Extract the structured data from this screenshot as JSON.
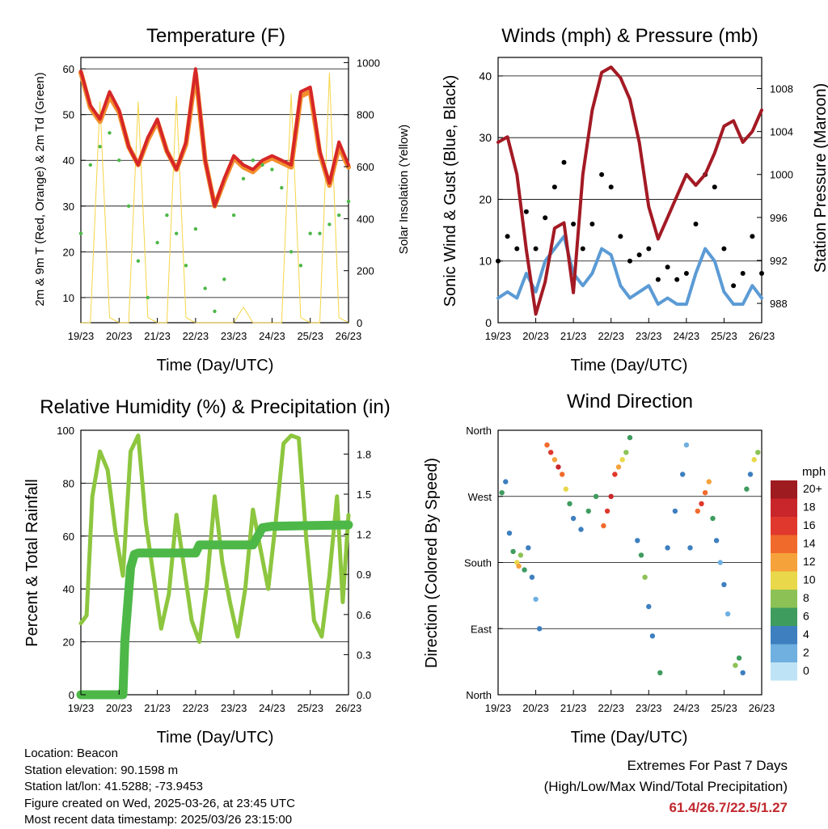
{
  "time_ticks": [
    "19/23",
    "20/23",
    "21/23",
    "22/23",
    "23/23",
    "24/23",
    "25/23",
    "26/23"
  ],
  "info": {
    "location": "Location: Beacon",
    "elevation": "Station elevation: 90.1598 m",
    "latlon": "Station lat/lon: 41.5288; -73.9453",
    "created": "Figure created on Wed, 2025-03-26, at 23:45 UTC",
    "recent": "Most recent data timestamp: 2025/03/26 23:15:00"
  },
  "extremes": {
    "title": "Extremes For Past 7 Days",
    "subtitle": "(High/Low/Max Wind/Total Precipitation)",
    "values": "61.4/26.7/22.5/1.27"
  },
  "colors": {
    "red": "#d62728",
    "orange": "#f28e2b",
    "green": "#4db848",
    "yellow": "#f5d547",
    "blue": "#5b9bd5",
    "maroon": "#a31a24",
    "lightgreen": "#8dc63f",
    "black": "#000000"
  },
  "chart_data": [
    {
      "type": "line",
      "title": "Temperature (F)",
      "xlabel": "Time (Day/UTC)",
      "ylabel": "2m & 9m T (Red, Orange) & 2m Td (Green)",
      "ylabel_right": "Solar Insolation (Yellow)",
      "ylim": [
        4.5,
        62.5
      ],
      "yticks": [
        10,
        20,
        30,
        40,
        50,
        60
      ],
      "ylim_right": [
        0,
        1020
      ],
      "yticks_right": [
        0,
        200,
        400,
        600,
        800,
        1000
      ],
      "grid": true,
      "x": [
        0,
        0.25,
        0.5,
        0.75,
        1,
        1.25,
        1.5,
        1.75,
        2,
        2.25,
        2.5,
        2.75,
        3,
        3.25,
        3.5,
        3.75,
        4,
        4.25,
        4.5,
        4.75,
        5,
        5.25,
        5.5,
        5.75,
        6,
        6.25,
        6.5,
        6.75,
        7
      ],
      "series": [
        {
          "color_key": "red",
          "values": [
            59.5,
            52,
            49,
            55,
            51,
            43,
            39,
            45,
            49,
            42,
            38,
            44,
            60,
            40,
            30,
            36,
            41,
            39,
            38,
            40,
            41,
            40,
            39,
            55,
            56,
            42,
            35,
            44,
            39
          ]
        },
        {
          "color_key": "orange",
          "values": [
            59.2,
            51.5,
            48.5,
            54,
            50.5,
            43,
            39,
            44.5,
            48.5,
            42,
            38,
            43.5,
            59,
            40,
            30,
            35.5,
            40.5,
            38.5,
            37.5,
            39.5,
            40.5,
            39.5,
            38.5,
            54,
            55,
            41.5,
            34.5,
            43,
            38.5
          ]
        },
        {
          "color_key": "green",
          "values": [
            24,
            39,
            43,
            46,
            40,
            30,
            18,
            10,
            22,
            28,
            24,
            17,
            25,
            12,
            7,
            14,
            28,
            36,
            40,
            39,
            38,
            34,
            20,
            17,
            24,
            24,
            26,
            28,
            31
          ]
        },
        {
          "color_key": "yellow",
          "axis": "right",
          "values": [
            0,
            0,
            850,
            20,
            0,
            0,
            850,
            20,
            0,
            0,
            870,
            20,
            0,
            0,
            0,
            0,
            0,
            60,
            0,
            0,
            0,
            0,
            880,
            20,
            0,
            0,
            960,
            20,
            0
          ]
        }
      ]
    },
    {
      "type": "line",
      "title": "Winds (mph) & Pressure (mb)",
      "xlabel": "Time (Day/UTC)",
      "ylabel": "Sonic Wind & Gust (Blue, Black)",
      "ylabel_right": "Station Pressure (Maroon)",
      "ylim": [
        0,
        43
      ],
      "yticks": [
        0,
        10,
        20,
        30,
        40
      ],
      "ylim_right": [
        986.2,
        1010.9
      ],
      "yticks_right": [
        988,
        992,
        996,
        1000,
        1004,
        1008
      ],
      "grid": true,
      "x": [
        0,
        0.25,
        0.5,
        0.75,
        1,
        1.25,
        1.5,
        1.75,
        2,
        2.25,
        2.5,
        2.75,
        3,
        3.25,
        3.5,
        3.75,
        4,
        4.25,
        4.5,
        4.75,
        5,
        5.25,
        5.5,
        5.75,
        6,
        6.25,
        6.5,
        6.75,
        7
      ],
      "series": [
        {
          "color_key": "blue",
          "values": [
            4,
            5,
            4,
            8,
            5,
            10,
            12,
            14,
            8,
            6,
            8,
            12,
            11,
            6,
            4,
            5,
            6,
            3,
            4,
            3,
            3,
            8,
            12,
            10,
            5,
            3,
            3,
            6,
            4
          ]
        },
        {
          "color_key": "black",
          "values": [
            10,
            14,
            12,
            18,
            12,
            17,
            22,
            26,
            16,
            12,
            16,
            24,
            22,
            14,
            10,
            11,
            12,
            7,
            9,
            7,
            8,
            16,
            24,
            22,
            12,
            6,
            8,
            14,
            8
          ]
        },
        {
          "color_key": "maroon",
          "axis": "right",
          "values": [
            1003,
            1003.5,
            1000,
            993,
            987,
            990,
            995,
            995.5,
            989,
            1000,
            1006,
            1009.5,
            1010,
            1009,
            1007,
            1003,
            997,
            994,
            996,
            998,
            1000,
            999,
            1000,
            1002,
            1004.5,
            1005,
            1003,
            1004,
            1006
          ]
        }
      ]
    },
    {
      "type": "line",
      "title": "Relative Humidity (%) & Precipitation (in)",
      "xlabel": "Time (Day/UTC)",
      "ylabel": "Percent & Total Rainfall",
      "ylim": [
        0,
        100
      ],
      "yticks": [
        0,
        20,
        40,
        60,
        80,
        100
      ],
      "ylim_right": [
        0,
        1.978
      ],
      "yticks_right": [
        0.0,
        0.3,
        0.6,
        0.9,
        1.2,
        1.5,
        1.8
      ],
      "yticks_right_labels": [
        "0.0",
        "0.3",
        "0.6",
        "0.9",
        "1.2",
        "1.5",
        "1.8"
      ],
      "grid": true,
      "series": [
        {
          "color_key": "lightgreen",
          "x": [
            0,
            0.15,
            0.3,
            0.5,
            0.7,
            0.9,
            1.1,
            1.3,
            1.5,
            1.7,
            1.9,
            2.1,
            2.3,
            2.5,
            2.7,
            2.9,
            3.1,
            3.3,
            3.5,
            3.7,
            3.9,
            4.1,
            4.3,
            4.5,
            4.7,
            4.9,
            5.1,
            5.3,
            5.5,
            5.7,
            5.9,
            6.1,
            6.3,
            6.5,
            6.7,
            6.85,
            7
          ],
          "values": [
            27,
            30,
            75,
            92,
            85,
            62,
            45,
            92,
            98,
            65,
            45,
            25,
            38,
            68,
            48,
            28,
            20,
            42,
            75,
            50,
            35,
            22,
            40,
            70,
            55,
            40,
            66,
            95,
            98,
            97,
            58,
            28,
            22,
            45,
            75,
            35,
            68
          ]
        },
        {
          "color_key": "green",
          "axis": "right",
          "x": [
            0,
            1.1,
            1.15,
            1.3,
            1.4,
            1.5,
            1.6,
            3,
            3.1,
            4.5,
            4.75,
            5,
            7
          ],
          "values": [
            0,
            0,
            0.4,
            0.95,
            1.05,
            1.06,
            1.06,
            1.06,
            1.12,
            1.12,
            1.25,
            1.26,
            1.27
          ]
        }
      ]
    },
    {
      "type": "scatter",
      "title": "Wind Direction",
      "xlabel": "Time (Day/UTC)",
      "ylabel": "Direction (Colored By Speed)",
      "yticks_labels": [
        "North",
        "East",
        "South",
        "West",
        "North"
      ],
      "ylim": [
        0,
        360
      ],
      "legend_title": "mph",
      "legend_labels": [
        "20+",
        "18",
        "16",
        "14",
        "12",
        "10",
        "8",
        "6",
        "4",
        "2",
        "0"
      ],
      "legend_colors": [
        "#9e1b1f",
        "#c8262b",
        "#e0382c",
        "#f06a2c",
        "#f6a23b",
        "#e8d84a",
        "#8cc255",
        "#3f9c5f",
        "#3d7fbf",
        "#6fb0e0",
        "#bfe3f6"
      ],
      "points": [
        [
          0.1,
          275,
          6
        ],
        [
          0.2,
          290,
          4
        ],
        [
          0.3,
          220,
          3
        ],
        [
          0.4,
          195,
          6
        ],
        [
          0.5,
          180,
          10
        ],
        [
          0.55,
          175,
          12
        ],
        [
          0.6,
          190,
          8
        ],
        [
          0.7,
          170,
          6
        ],
        [
          0.8,
          200,
          4
        ],
        [
          0.9,
          160,
          3
        ],
        [
          1.0,
          130,
          2
        ],
        [
          1.1,
          90,
          3
        ],
        [
          1.3,
          340,
          14
        ],
        [
          1.4,
          330,
          16
        ],
        [
          1.5,
          320,
          12
        ],
        [
          1.6,
          310,
          18
        ],
        [
          1.7,
          300,
          14
        ],
        [
          1.8,
          280,
          10
        ],
        [
          1.9,
          260,
          6
        ],
        [
          2.0,
          240,
          4
        ],
        [
          2.2,
          225,
          3
        ],
        [
          2.4,
          250,
          6
        ],
        [
          2.6,
          270,
          5
        ],
        [
          2.8,
          230,
          14
        ],
        [
          2.9,
          250,
          16
        ],
        [
          3.0,
          270,
          18
        ],
        [
          3.1,
          300,
          16
        ],
        [
          3.2,
          310,
          12
        ],
        [
          3.3,
          320,
          10
        ],
        [
          3.4,
          330,
          8
        ],
        [
          3.5,
          350,
          6
        ],
        [
          3.7,
          210,
          4
        ],
        [
          3.8,
          190,
          6
        ],
        [
          3.9,
          160,
          8
        ],
        [
          4.0,
          120,
          4
        ],
        [
          4.1,
          80,
          3
        ],
        [
          4.3,
          30,
          6
        ],
        [
          4.5,
          200,
          3
        ],
        [
          4.7,
          250,
          4
        ],
        [
          4.9,
          300,
          3
        ],
        [
          5.0,
          340,
          2
        ],
        [
          5.1,
          200,
          3
        ],
        [
          5.3,
          250,
          14
        ],
        [
          5.4,
          260,
          16
        ],
        [
          5.5,
          275,
          14
        ],
        [
          5.6,
          290,
          12
        ],
        [
          5.7,
          240,
          6
        ],
        [
          5.8,
          210,
          4
        ],
        [
          5.9,
          180,
          2
        ],
        [
          6.0,
          150,
          3
        ],
        [
          6.1,
          110,
          2
        ],
        [
          6.3,
          40,
          8
        ],
        [
          6.4,
          50,
          6
        ],
        [
          6.5,
          30,
          4
        ],
        [
          6.6,
          280,
          6
        ],
        [
          6.7,
          300,
          3
        ],
        [
          6.8,
          320,
          10
        ],
        [
          6.9,
          330,
          8
        ]
      ]
    }
  ]
}
